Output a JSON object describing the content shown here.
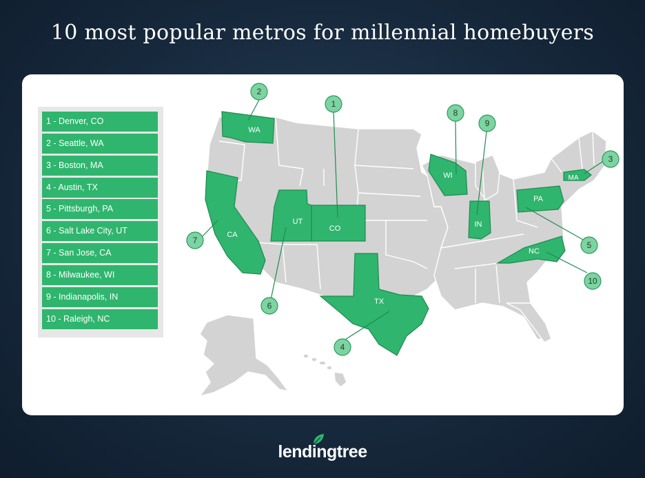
{
  "title": "10 most popular metros for millennial homebuyers",
  "legend": [
    "1 - Denver, CO",
    "2 - Seattle, WA",
    "3 - Boston, MA",
    "4 - Austin, TX",
    "5 - Pittsburgh, PA",
    "6 - Salt Lake City, UT",
    "7 - San Jose, CA",
    "8 - Milwaukee, WI",
    "9 - Indianapolis, IN",
    "10 - Raleigh, NC"
  ],
  "states": {
    "wa": "WA",
    "ca": "CA",
    "ut": "UT",
    "co": "CO",
    "tx": "TX",
    "wi": "WI",
    "in": "IN",
    "pa": "PA",
    "nc": "NC",
    "ma": "MA"
  },
  "markers": {
    "co": "1",
    "wa": "2",
    "ma": "3",
    "tx": "4",
    "pa": "5",
    "ut": "6",
    "ca": "7",
    "wi": "8",
    "in": "9",
    "nc": "10"
  },
  "brand": {
    "name": "lendingtree"
  },
  "colors": {
    "highlight": "#2fb56e",
    "badge": "#7dd3a1",
    "land": "#d3d3d3",
    "background": "#17293d"
  }
}
